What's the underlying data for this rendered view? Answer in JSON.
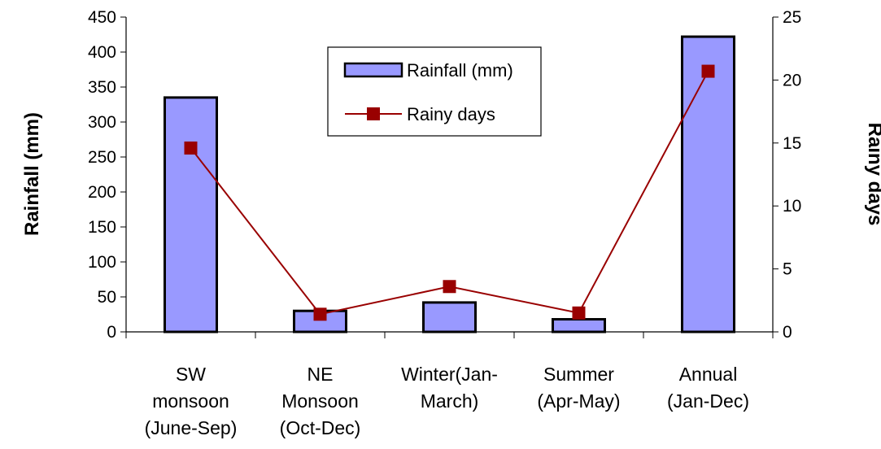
{
  "chart_data": {
    "type": "bar",
    "categories": [
      [
        "SW",
        "monsoon",
        "(June-Sep)"
      ],
      [
        "NE",
        "Monsoon",
        "(Oct-Dec)"
      ],
      [
        "Winter(Jan-",
        "March)"
      ],
      [
        "Summer",
        "(Apr-May)"
      ],
      [
        "Annual",
        "(Jan-Dec)"
      ]
    ],
    "series": [
      {
        "name": "Rainfall (mm)",
        "type": "bar",
        "axis": "left",
        "color": "#9999ff",
        "values": [
          335,
          30,
          42,
          18,
          422
        ]
      },
      {
        "name": "Rainy days",
        "type": "line",
        "axis": "right",
        "color": "#990000",
        "values": [
          14.6,
          1.4,
          3.6,
          1.5,
          20.7
        ]
      }
    ],
    "ylabel": "Rainfall (mm)",
    "y2label": "Rainy days",
    "ylim": [
      0,
      450
    ],
    "yticks": [
      "0",
      "50",
      "100",
      "150",
      "200",
      "250",
      "300",
      "350",
      "400",
      "450"
    ],
    "y2lim": [
      0,
      25
    ],
    "y2ticks": [
      "0",
      "5",
      "10",
      "15",
      "20",
      "25"
    ],
    "legend_position": "top-center",
    "grid": false
  }
}
